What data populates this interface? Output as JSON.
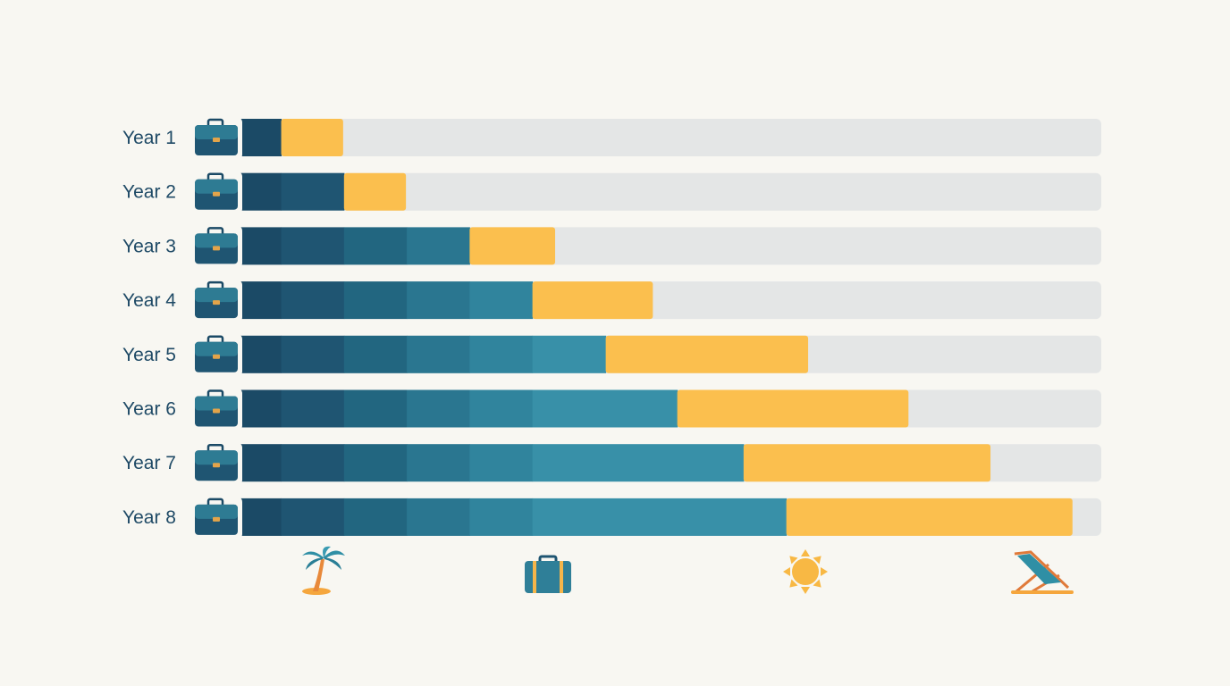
{
  "chart_data": {
    "type": "bar",
    "stacked": true,
    "orientation": "horizontal",
    "title": "",
    "xlabel": "",
    "ylabel": "",
    "grid": false,
    "legend": "none",
    "categories": [
      "Year 1",
      "Year 2",
      "Year 3",
      "Year 4",
      "Year 5",
      "Year 6",
      "Year 7",
      "Year 8"
    ],
    "xlim": [
      0,
      100
    ],
    "series": [
      {
        "color": "#1b4a66",
        "values": [
          6,
          6,
          6,
          6,
          6,
          6,
          6,
          6
        ]
      },
      {
        "color": "#1f5572",
        "values": [
          0,
          7.2,
          7.2,
          7.2,
          7.2,
          7.2,
          7.2,
          7.2
        ]
      },
      {
        "color": "#226680",
        "values": [
          0,
          0,
          7.2,
          7.2,
          7.2,
          7.2,
          7.2,
          7.2
        ]
      },
      {
        "color": "#2a7690",
        "values": [
          0,
          0,
          7.2,
          7.2,
          7.2,
          7.2,
          7.2,
          7.2
        ]
      },
      {
        "color": "#30849d",
        "values": [
          0,
          0,
          0,
          7.2,
          7.2,
          7.2,
          7.2,
          7.2
        ]
      },
      {
        "color": "#3890a8",
        "values": [
          0,
          0,
          0,
          0,
          8.4,
          16.6,
          24.2,
          29.1
        ]
      },
      {
        "color": "#fbbf4e",
        "values": [
          7.1,
          7.1,
          9.8,
          13.8,
          23.2,
          26.5,
          28.3,
          32.8
        ]
      }
    ],
    "track_color": "#e4e6e6"
  },
  "icons": {
    "row_marker": "briefcase-icon",
    "footer": [
      "palm-tree-icon",
      "suitcase-icon",
      "sun-icon",
      "beach-chair-icon"
    ]
  }
}
